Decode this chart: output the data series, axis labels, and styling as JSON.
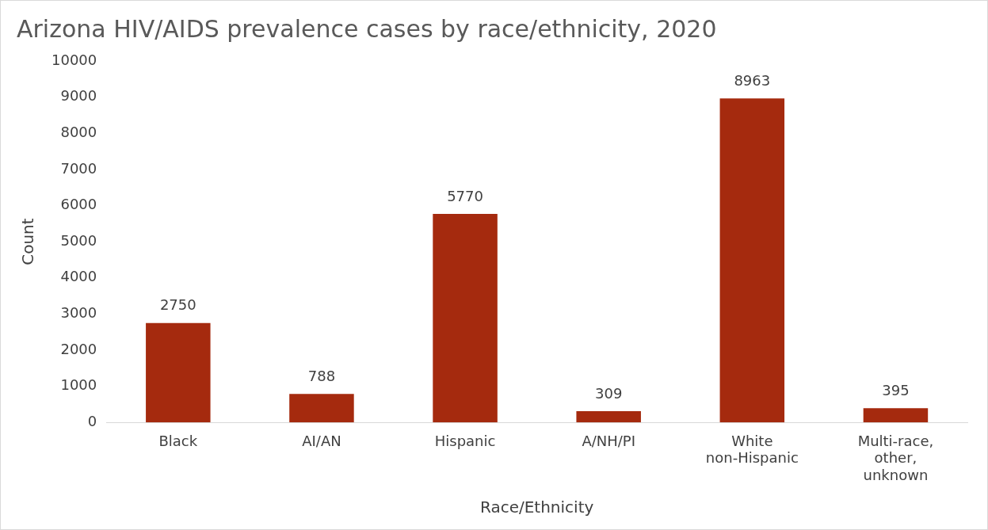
{
  "chart_data": {
    "type": "bar",
    "title": "Arizona HIV/AIDS prevalence cases by race/ethnicity, 2020",
    "xlabel": "Race/Ethnicity",
    "ylabel": "Count",
    "categories": [
      "Black",
      "AI/AN",
      "Hispanic",
      "A/NH/PI",
      "White non-Hispanic",
      "Multi-race, other, unknown"
    ],
    "values": [
      2750,
      788,
      5770,
      309,
      8963,
      395
    ],
    "color": "#a52a0e",
    "ylim": [
      0,
      10000
    ],
    "yticks": [
      0,
      1000,
      2000,
      3000,
      4000,
      5000,
      6000,
      7000,
      8000,
      9000,
      10000
    ],
    "grid": false,
    "legend": false,
    "data_labels": true
  }
}
